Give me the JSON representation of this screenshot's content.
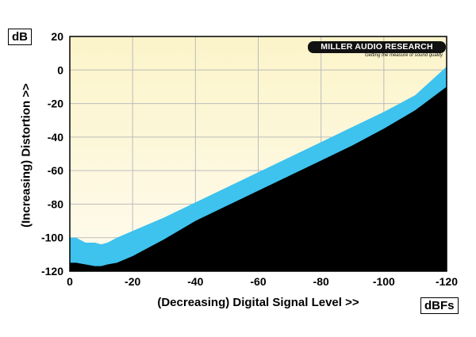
{
  "chart_data": {
    "type": "area",
    "title": "",
    "xlabel": "(Decreasing) Digital Signal Level >>",
    "ylabel": "(Increasing) Distortion >>",
    "x_unit": "dBFs",
    "y_unit": "dB",
    "xlim": [
      0,
      -120
    ],
    "ylim": [
      -120,
      20
    ],
    "x_ticks": [
      "0",
      "-20",
      "-40",
      "-60",
      "-80",
      "-100",
      "-120"
    ],
    "y_ticks": [
      "20",
      "0",
      "-20",
      "-40",
      "-60",
      "-80",
      "-100",
      "-120"
    ],
    "grid": true,
    "legend": "none",
    "logo": {
      "name": "MILLER AUDIO RESEARCH",
      "tagline": "Getting the measure of sound quality"
    },
    "series": [
      {
        "role": "upper",
        "color": "#3ec2ee",
        "x": [
          0,
          -2,
          -5,
          -8,
          -10,
          -12,
          -15,
          -20,
          -30,
          -40,
          -50,
          -60,
          -70,
          -80,
          -90,
          -100,
          -110,
          -120
        ],
        "y": [
          -100,
          -100,
          -103,
          -103,
          -104,
          -103,
          -100,
          -96,
          -88,
          -79,
          -70,
          -61,
          -52,
          -43,
          -34,
          -25,
          -15,
          2
        ]
      },
      {
        "role": "lower",
        "color": "#000000",
        "x": [
          0,
          -2,
          -5,
          -8,
          -10,
          -12,
          -15,
          -20,
          -30,
          -40,
          -50,
          -60,
          -70,
          -80,
          -90,
          -100,
          -110,
          -120
        ],
        "y": [
          -115,
          -115,
          -116,
          -117,
          -117,
          -116,
          -115,
          -111,
          -101,
          -90,
          -81,
          -72,
          -63,
          -54,
          -45,
          -35,
          -24,
          -10
        ]
      }
    ],
    "colors": {
      "background_top": "#fbf4c9",
      "background_bottom": "#fffbee",
      "grid": "#bcbcbc"
    }
  }
}
